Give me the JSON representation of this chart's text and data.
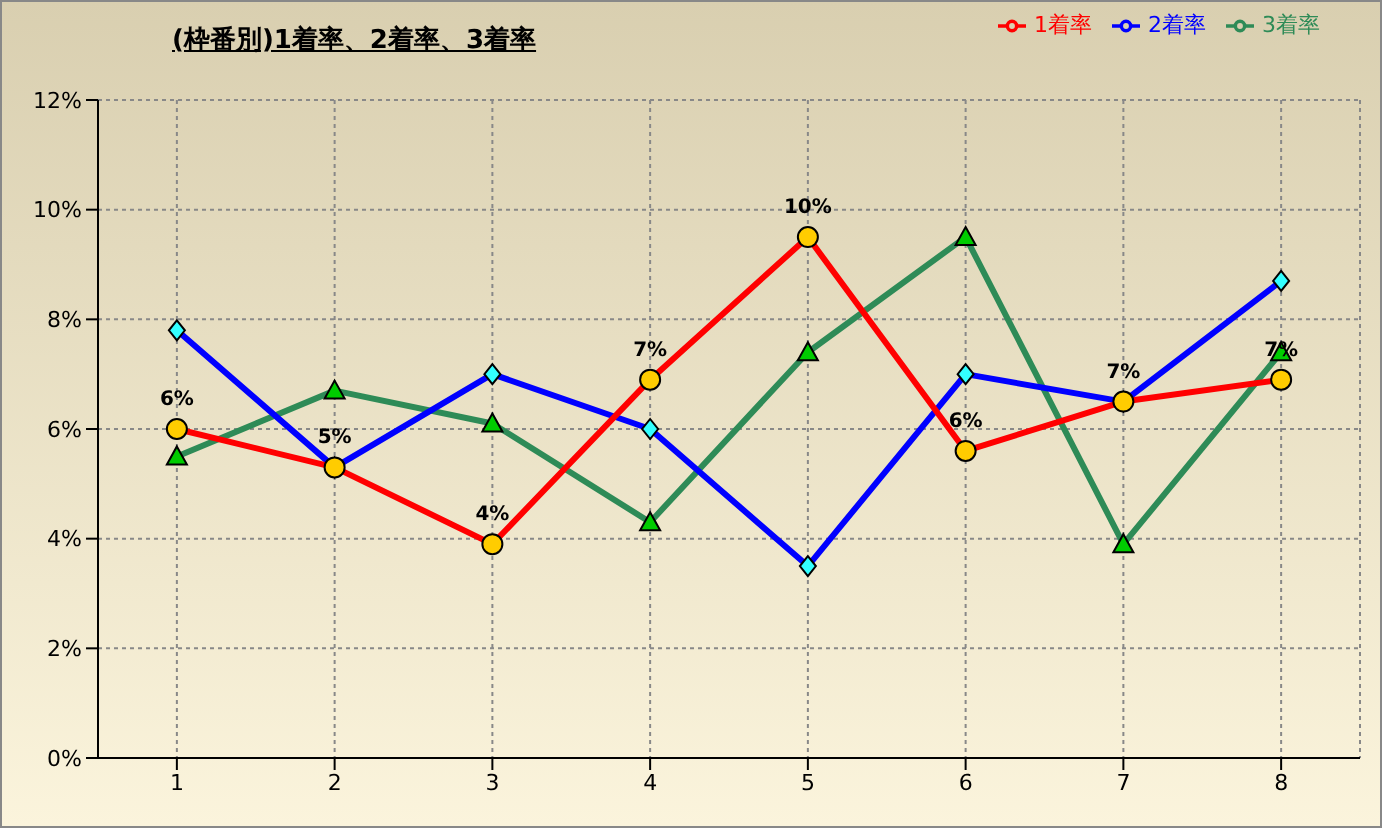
{
  "chart_data": {
    "type": "line",
    "title": "(枠番別)1着率、2着率、3着率",
    "categories": [
      "1",
      "2",
      "3",
      "4",
      "5",
      "6",
      "7",
      "8"
    ],
    "series": [
      {
        "name": "3着率",
        "color": "#2e8b57",
        "marker": "triangle",
        "values": [
          5.5,
          6.7,
          6.1,
          4.3,
          7.4,
          9.5,
          3.9,
          7.4
        ]
      },
      {
        "name": "2着率",
        "color": "#0000ff",
        "marker": "diamond",
        "values": [
          7.8,
          5.3,
          7.0,
          6.0,
          3.5,
          7.0,
          6.5,
          8.7
        ]
      },
      {
        "name": "1着率",
        "color": "#ff0000",
        "marker": "circle",
        "values": [
          6.0,
          5.3,
          3.9,
          6.9,
          9.5,
          5.6,
          6.5,
          6.9
        ],
        "value_labels": [
          "6%",
          "5%",
          "4%",
          "7%",
          "10%",
          "6%",
          "7%",
          "7%"
        ]
      }
    ],
    "ylim": [
      0,
      12
    ],
    "yticks": [
      {
        "value": 0,
        "label": "0%"
      },
      {
        "value": 2,
        "label": "2%"
      },
      {
        "value": 4,
        "label": "4%"
      },
      {
        "value": 6,
        "label": "6%"
      },
      {
        "value": 8,
        "label": "8%"
      },
      {
        "value": 10,
        "label": "10%"
      },
      {
        "value": 12,
        "label": "12%"
      }
    ],
    "grid": true,
    "legend": "top right"
  }
}
